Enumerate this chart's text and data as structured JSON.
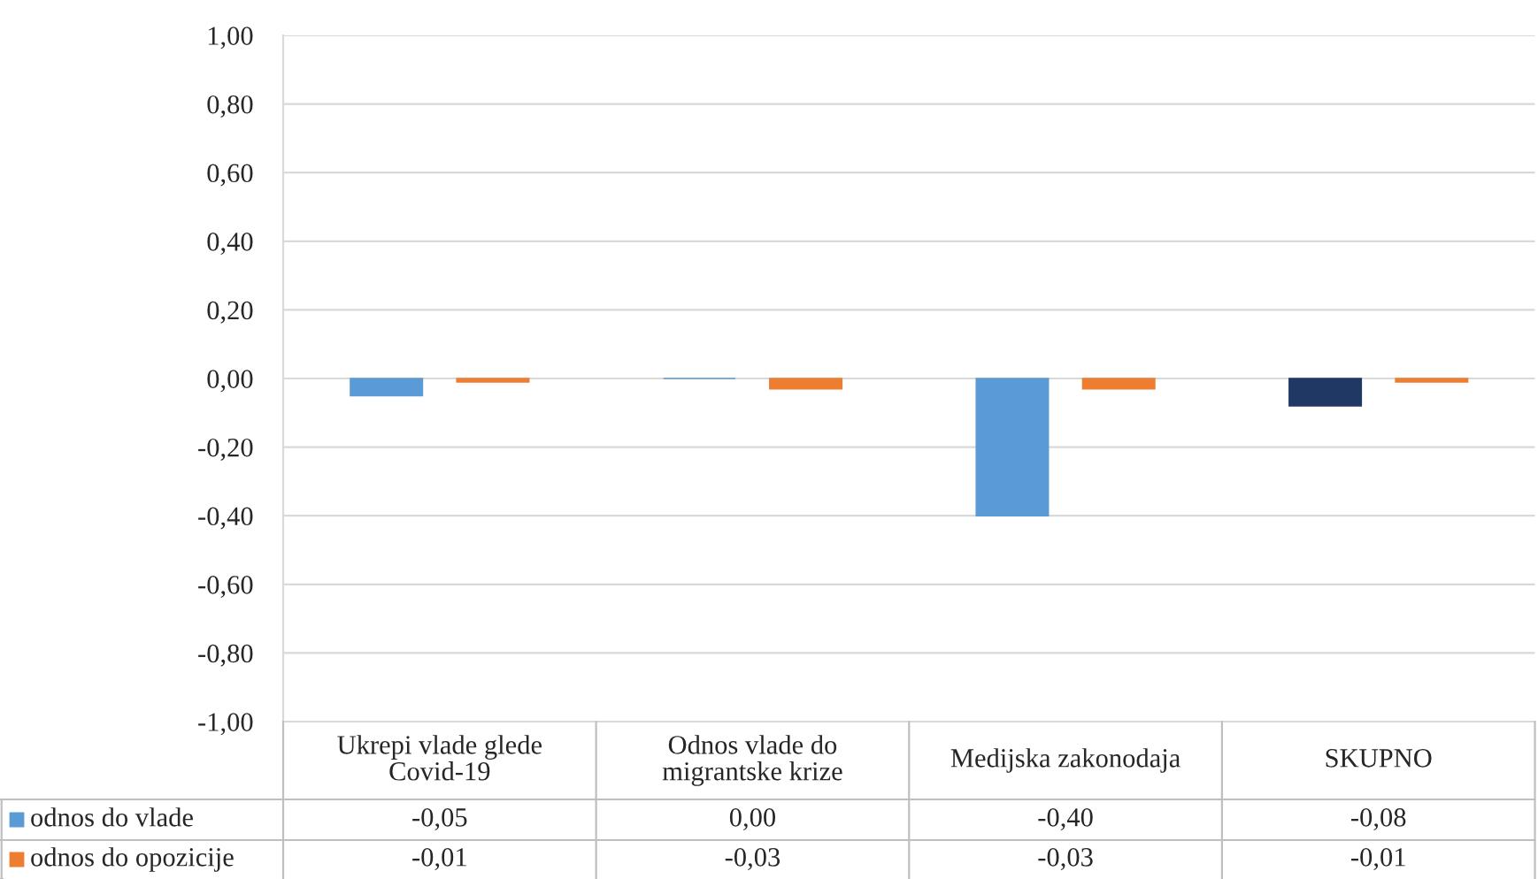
{
  "chart_data": {
    "type": "bar",
    "categories": [
      "Ukrepi vlade glede\nCovid-19",
      "Odnos vlade do\nmigrantske krize",
      "Medijska zakonodaja",
      "SKUPNO"
    ],
    "series": [
      {
        "name": "odnos do vlade",
        "color": "#5b9bd5",
        "colors": [
          "#5b9bd5",
          "#5b9bd5",
          "#5b9bd5",
          "#203864"
        ],
        "values": [
          -0.05,
          0.0,
          -0.4,
          -0.08
        ],
        "value_labels": [
          "-0,05",
          "0,00",
          "-0,40",
          "-0,08"
        ]
      },
      {
        "name": "odnos do opozicije",
        "color": "#ed7d31",
        "colors": [
          "#ed7d31",
          "#ed7d31",
          "#ed7d31",
          "#ed7d31"
        ],
        "values": [
          -0.01,
          -0.03,
          -0.03,
          -0.01
        ],
        "value_labels": [
          "-0,01",
          "-0,03",
          "-0,03",
          "-0,01"
        ]
      }
    ],
    "ylim": [
      -1,
      1
    ],
    "yticks": [
      {
        "value": -1,
        "label": "-1,00"
      },
      {
        "value": -0.8,
        "label": "-0,80"
      },
      {
        "value": -0.6,
        "label": "-0,60"
      },
      {
        "value": -0.4,
        "label": "-0,40"
      },
      {
        "value": -0.2,
        "label": "-0,20"
      },
      {
        "value": 0,
        "label": "0,00"
      },
      {
        "value": 0.2,
        "label": "0,20"
      },
      {
        "value": 0.4,
        "label": "0,40"
      },
      {
        "value": 0.6,
        "label": "0,60"
      },
      {
        "value": 0.8,
        "label": "0,80"
      },
      {
        "value": 1,
        "label": "1,00"
      }
    ],
    "grid": "y",
    "legend": "bottom"
  }
}
